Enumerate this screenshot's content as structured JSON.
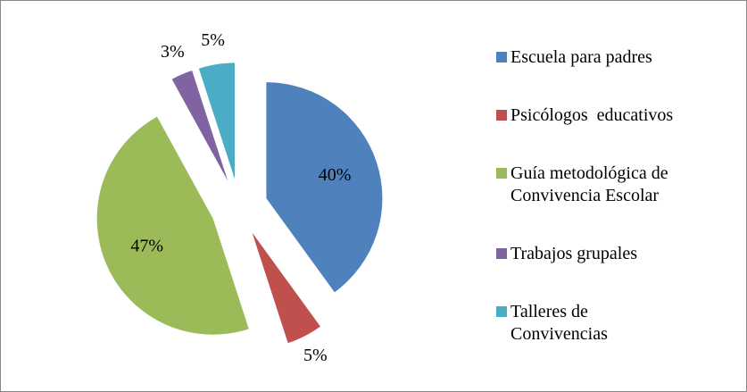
{
  "chart_data": {
    "type": "pie",
    "categories": [
      "Escuela para padres",
      "Psicólogos  educativos",
      "Guía metodológica de\nConvivencia Escolar",
      "Trabajos grupales",
      "Talleres de\nConvivencias"
    ],
    "values": [
      40,
      5,
      47,
      3,
      5
    ],
    "value_labels": [
      "40%",
      "5%",
      "47%",
      "3%",
      "5%"
    ],
    "colors": [
      "#4f81bd",
      "#c0504d",
      "#9bbb59",
      "#8064a2",
      "#4bacc6"
    ],
    "exploded": true,
    "legend": "right"
  }
}
